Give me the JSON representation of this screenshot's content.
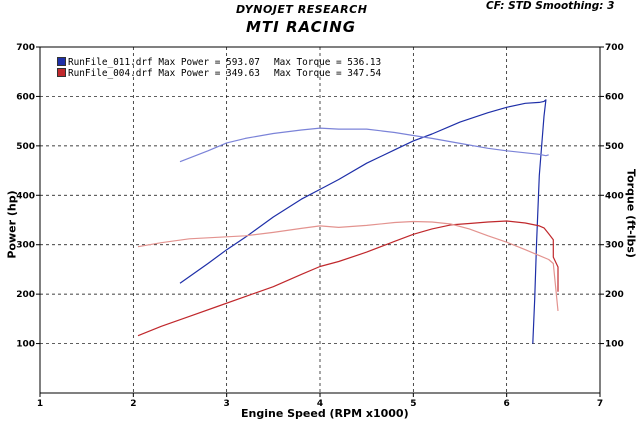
{
  "header": {
    "company": "DYNOJET RESEARCH",
    "title": "MTI RACING",
    "settings": "CF: STD   Smoothing: 3"
  },
  "legend": [
    {
      "file": "RunFile_011.drf",
      "power_label": "Max Power = 593.07",
      "torque_label": "Max Torque = 536.13",
      "color": "#1e2fa8"
    },
    {
      "file": "RunFile_004.drf",
      "power_label": "Max Power = 349.63",
      "torque_label": "Max Torque = 347.54",
      "color": "#c0282c"
    }
  ],
  "chart_data": {
    "type": "line",
    "title": "MTI RACING",
    "xlabel": "Engine Speed (RPM x1000)",
    "ylabel_left": "Power (hp)",
    "ylabel_right": "Torque (ft-lbs)",
    "xlim": [
      1,
      7
    ],
    "ylim": [
      0,
      700
    ],
    "xticks": [
      1,
      2,
      3,
      4,
      5,
      6,
      7
    ],
    "yticks": [
      100,
      200,
      300,
      400,
      500,
      600,
      700
    ],
    "grid": true,
    "series": [
      {
        "name": "RunFile_011.drf Power",
        "role": "power",
        "color": "#1e2fa8",
        "x": [
          2.5,
          2.8,
          3.0,
          3.2,
          3.5,
          3.8,
          4.0,
          4.2,
          4.5,
          4.8,
          5.0,
          5.2,
          5.5,
          5.8,
          6.0,
          6.2,
          6.35,
          6.4,
          6.42,
          6.4,
          6.35,
          6.32,
          6.3,
          6.28
        ],
        "y": [
          222,
          262,
          290,
          315,
          356,
          392,
          412,
          432,
          465,
          492,
          510,
          524,
          548,
          567,
          578,
          586,
          588,
          590,
          593,
          560,
          440,
          300,
          190,
          100
        ]
      },
      {
        "name": "RunFile_011.drf Torque",
        "role": "torque",
        "color": "#7b83d8",
        "x": [
          2.5,
          2.8,
          3.0,
          3.2,
          3.5,
          3.8,
          4.0,
          4.2,
          4.5,
          4.8,
          5.0,
          5.2,
          5.5,
          5.8,
          6.0,
          6.2,
          6.35,
          6.42,
          6.45
        ],
        "y": [
          468,
          490,
          506,
          515,
          525,
          532,
          536,
          534,
          534,
          527,
          521,
          515,
          505,
          495,
          490,
          486,
          483,
          480,
          482
        ]
      },
      {
        "name": "RunFile_004.drf Power",
        "role": "power",
        "color": "#c0282c",
        "x": [
          2.05,
          2.3,
          2.6,
          2.9,
          3.2,
          3.5,
          3.8,
          4.0,
          4.2,
          4.5,
          4.8,
          5.0,
          5.2,
          5.4,
          5.6,
          5.8,
          6.0,
          6.2,
          6.35,
          6.4,
          6.45,
          6.5,
          6.5,
          6.55,
          6.55
        ],
        "y": [
          116,
          135,
          155,
          175,
          195,
          215,
          240,
          256,
          266,
          285,
          307,
          321,
          332,
          340,
          343,
          346,
          348,
          344,
          338,
          334,
          322,
          310,
          275,
          255,
          205
        ]
      },
      {
        "name": "RunFile_004.drf Torque",
        "role": "torque",
        "color": "#e3938f",
        "x": [
          2.05,
          2.3,
          2.6,
          2.9,
          3.2,
          3.5,
          3.8,
          4.0,
          4.2,
          4.5,
          4.8,
          5.0,
          5.2,
          5.4,
          5.6,
          5.8,
          6.0,
          6.2,
          6.35,
          6.45,
          6.5,
          6.55
        ],
        "y": [
          296,
          304,
          312,
          315,
          318,
          325,
          333,
          338,
          335,
          339,
          345,
          347,
          346,
          342,
          332,
          318,
          305,
          290,
          278,
          270,
          262,
          166
        ]
      }
    ]
  }
}
